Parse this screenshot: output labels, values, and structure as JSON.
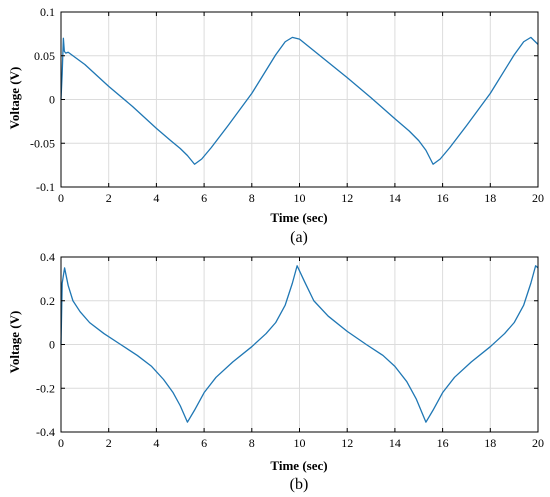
{
  "chart_data": [
    {
      "type": "line",
      "panel_label": "(a)",
      "xlabel": "Time (sec)",
      "ylabel": "Voltage (V)",
      "xlim": [
        0,
        20
      ],
      "ylim": [
        -0.1,
        0.1
      ],
      "xticks": [
        0,
        2,
        4,
        6,
        8,
        10,
        12,
        14,
        16,
        18,
        20
      ],
      "yticks": [
        -0.1,
        -0.05,
        0,
        0.05,
        0.1
      ],
      "xtick_labels": [
        "0",
        "2",
        "4",
        "6",
        "8",
        "10",
        "12",
        "14",
        "16",
        "18",
        "20"
      ],
      "ytick_labels": [
        "-0.1",
        "-0.05",
        "0",
        "0.05",
        "0.1"
      ],
      "grid": true,
      "color": "#1f77b4",
      "series": [
        {
          "x": [
            0,
            0.05,
            0.1,
            0.14,
            0.2,
            0.3,
            1,
            2,
            3,
            4,
            4.6,
            5,
            5.3,
            5.6,
            5.9,
            6.3,
            7,
            8,
            9,
            9.4,
            9.7,
            10,
            11,
            12,
            13,
            14,
            14.6,
            15,
            15.3,
            15.6,
            15.9,
            16.3,
            17,
            18,
            19,
            19.4,
            19.7,
            20
          ],
          "y": [
            0,
            0.03,
            0.07,
            0.055,
            0.053,
            0.054,
            0.04,
            0.015,
            -0.008,
            -0.033,
            -0.047,
            -0.056,
            -0.064,
            -0.074,
            -0.068,
            -0.055,
            -0.03,
            0.007,
            0.051,
            0.066,
            0.071,
            0.069,
            0.047,
            0.025,
            0.002,
            -0.022,
            -0.036,
            -0.047,
            -0.058,
            -0.074,
            -0.068,
            -0.055,
            -0.03,
            0.007,
            0.051,
            0.066,
            0.071,
            0.063
          ]
        }
      ]
    },
    {
      "type": "line",
      "panel_label": "(b)",
      "xlabel": "Time (sec)",
      "ylabel": "Voltage (V)",
      "xlim": [
        0,
        20
      ],
      "ylim": [
        -0.4,
        0.4
      ],
      "xticks": [
        0,
        2,
        4,
        6,
        8,
        10,
        12,
        14,
        16,
        18,
        20
      ],
      "yticks": [
        -0.4,
        -0.2,
        0,
        0.2,
        0.4
      ],
      "xtick_labels": [
        "0",
        "2",
        "4",
        "6",
        "8",
        "10",
        "12",
        "14",
        "16",
        "18",
        "20"
      ],
      "ytick_labels": [
        "-0.4",
        "-0.2",
        "0",
        "0.2",
        "0.4"
      ],
      "grid": true,
      "color": "#1f77b4",
      "series": [
        {
          "x": [
            0,
            0.05,
            0.15,
            0.3,
            0.5,
            0.8,
            1.2,
            1.8,
            2.5,
            3.2,
            3.8,
            4.3,
            4.7,
            5.0,
            5.3,
            5.6,
            6.0,
            6.5,
            7.2,
            8.0,
            8.6,
            9.0,
            9.4,
            9.7,
            9.9,
            10.2,
            10.6,
            11.2,
            12.0,
            12.8,
            13.5,
            14.0,
            14.5,
            14.9,
            15.3,
            15.6,
            16.0,
            16.5,
            17.2,
            18.0,
            18.6,
            19.0,
            19.4,
            19.7,
            19.9,
            20
          ],
          "y": [
            0,
            0.28,
            0.35,
            0.27,
            0.2,
            0.15,
            0.1,
            0.05,
            0.0,
            -0.05,
            -0.1,
            -0.16,
            -0.22,
            -0.28,
            -0.355,
            -0.3,
            -0.22,
            -0.15,
            -0.08,
            -0.01,
            0.05,
            0.1,
            0.18,
            0.28,
            0.36,
            0.29,
            0.2,
            0.13,
            0.06,
            0.0,
            -0.05,
            -0.1,
            -0.17,
            -0.25,
            -0.355,
            -0.3,
            -0.22,
            -0.15,
            -0.08,
            -0.01,
            0.05,
            0.1,
            0.18,
            0.28,
            0.36,
            0.35
          ]
        }
      ]
    }
  ]
}
